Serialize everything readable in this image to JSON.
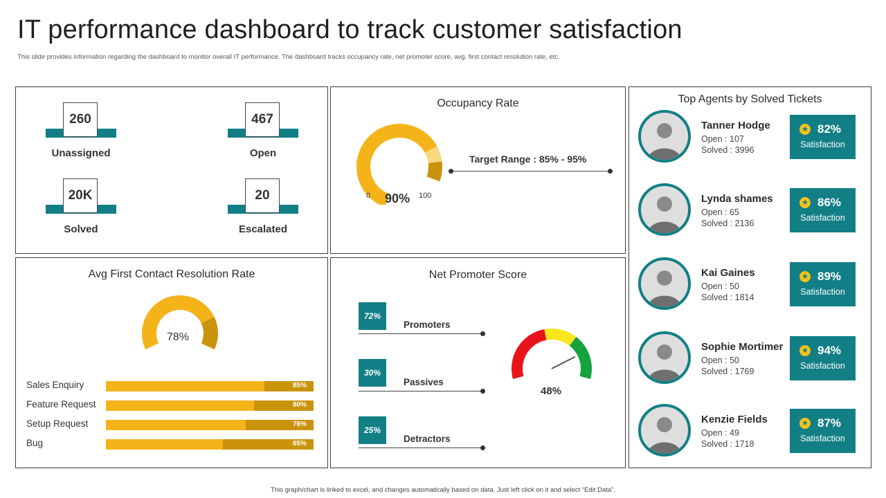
{
  "header": {
    "title": "IT performance dashboard to track customer satisfaction",
    "subtitle": "This slide provides information regarding the dashboard to monitor overall IT performance. The dashboard tracks occupancy rate, net promoter score, avg. first contact resolution rate, etc."
  },
  "stats": [
    {
      "value": "260",
      "label": "Unassigned"
    },
    {
      "value": "467",
      "label": "Open"
    },
    {
      "value": "20K",
      "label": "Solved"
    },
    {
      "value": "20",
      "label": "Escalated"
    }
  ],
  "occupancy": {
    "title": "Occupancy Rate",
    "value": 90,
    "value_label": "90%",
    "min_label": "0",
    "max_label": "100",
    "target_label": "Target Range : 85% - 95%"
  },
  "fcr": {
    "title": "Avg First Contact Resolution Rate",
    "value": 78,
    "value_label": "78%",
    "rows": [
      {
        "label": "Sales Enquiry",
        "value": 85,
        "pct": "85%"
      },
      {
        "label": "Feature Request",
        "value": 80,
        "pct": "80%"
      },
      {
        "label": "Setup Request",
        "value": 76,
        "pct": "76%"
      },
      {
        "label": "Bug",
        "value": 65,
        "pct": "65%"
      }
    ]
  },
  "nps": {
    "title": "Net Promoter Score",
    "items": [
      {
        "pct": "72%",
        "label": "Promoters"
      },
      {
        "pct": "30%",
        "label": "Passives"
      },
      {
        "pct": "25%",
        "label": "Detractors"
      }
    ],
    "score": 48,
    "score_label": "48%"
  },
  "agents": {
    "title": "Top Agents by Solved Tickets",
    "satisfaction_label": "Satisfaction",
    "list": [
      {
        "name": "Tanner Hodge",
        "open": "Open  : 107",
        "solved": "Solved  : 3996",
        "satisfaction": "82%"
      },
      {
        "name": "Lynda shames",
        "open": "Open  : 65",
        "solved": "Solved  : 2136",
        "satisfaction": "86%"
      },
      {
        "name": "Kai Gaines",
        "open": "Open  : 50",
        "solved": "Solved  : 1814",
        "satisfaction": "89%"
      },
      {
        "name": "Sophie Mortimer",
        "open": "Open  : 50",
        "solved": "Solved  : 1769",
        "satisfaction": "94%"
      },
      {
        "name": "Kenzie Fields",
        "open": "Open  : 49",
        "solved": "Solved  : 1718",
        "satisfaction": "87%"
      }
    ]
  },
  "footer": "This graph/chart is linked to excel, and changes automatically based on data. Just left click on it and select “Edit Data”.",
  "colors": {
    "teal": "#127f86",
    "gold": "#f5b31a",
    "dark_gold": "#c9930c",
    "red": "#e8141b",
    "yellow": "#f7e61c",
    "green": "#14a33c"
  }
}
